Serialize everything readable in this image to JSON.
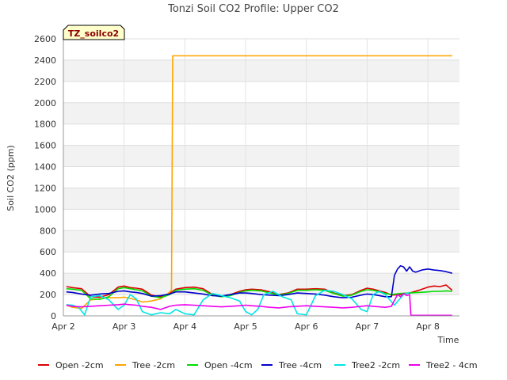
{
  "chart_data": {
    "type": "line",
    "title": "Tonzi Soil CO2 Profile: Upper CO2",
    "badge": "TZ_soilco2",
    "xlabel": "Time",
    "ylabel": "Soil CO2 (ppm)",
    "xlim": [
      2.0,
      8.52
    ],
    "ylim": [
      0,
      2600
    ],
    "yticks": [
      0,
      200,
      400,
      600,
      800,
      1000,
      1200,
      1400,
      1600,
      1800,
      2000,
      2200,
      2400,
      2600
    ],
    "xticks": [
      {
        "value": 2,
        "label": "Apr 2"
      },
      {
        "value": 3,
        "label": "Apr 3"
      },
      {
        "value": 4,
        "label": "Apr 4"
      },
      {
        "value": 5,
        "label": "Apr 5"
      },
      {
        "value": 6,
        "label": "Apr 6"
      },
      {
        "value": 7,
        "label": "Apr 7"
      },
      {
        "value": 8,
        "label": "Apr 8"
      }
    ],
    "grid": true,
    "legend_position": "bottom",
    "series": [
      {
        "name": "Open -2cm",
        "color": "#dd0000",
        "x": [
          2.05,
          2.15,
          2.3,
          2.45,
          2.6,
          2.75,
          2.9,
          3.0,
          3.1,
          3.2,
          3.3,
          3.45,
          3.6,
          3.75,
          3.85,
          4.0,
          4.15,
          4.3,
          4.45,
          4.6,
          4.75,
          4.9,
          5.0,
          5.1,
          5.25,
          5.4,
          5.55,
          5.7,
          5.85,
          6.0,
          6.15,
          6.3,
          6.45,
          6.6,
          6.75,
          6.9,
          7.0,
          7.1,
          7.2,
          7.3,
          7.4,
          7.55,
          7.7,
          7.85,
          8.0,
          8.1,
          8.2,
          8.3,
          8.4
        ],
        "y": [
          275,
          265,
          255,
          180,
          175,
          200,
          270,
          280,
          265,
          260,
          250,
          195,
          180,
          210,
          250,
          265,
          270,
          255,
          200,
          185,
          200,
          230,
          245,
          250,
          245,
          225,
          200,
          215,
          250,
          250,
          255,
          250,
          215,
          190,
          200,
          240,
          260,
          250,
          235,
          220,
          195,
          200,
          215,
          240,
          270,
          280,
          275,
          290,
          240
        ]
      },
      {
        "name": "Tree -2cm",
        "color": "#ffa500",
        "x": [
          2.05,
          2.15,
          2.3,
          2.45,
          2.6,
          2.75,
          2.9,
          3.0,
          3.1,
          3.2,
          3.3,
          3.45,
          3.6,
          3.7,
          3.78,
          3.8,
          4.0,
          5.0,
          6.0,
          7.0,
          8.0,
          8.4
        ],
        "y": [
          100,
          80,
          70,
          150,
          160,
          170,
          170,
          175,
          165,
          150,
          130,
          140,
          160,
          200,
          240,
          2440,
          2440,
          2440,
          2440,
          2440,
          2440,
          2440
        ]
      },
      {
        "name": "Open -4cm",
        "color": "#00dd00",
        "x": [
          2.05,
          2.15,
          2.3,
          2.45,
          2.6,
          2.75,
          2.9,
          3.0,
          3.1,
          3.2,
          3.3,
          3.45,
          3.6,
          3.75,
          3.85,
          4.0,
          4.15,
          4.3,
          4.45,
          4.6,
          4.75,
          4.9,
          5.0,
          5.1,
          5.25,
          5.4,
          5.55,
          5.7,
          5.85,
          6.0,
          6.15,
          6.3,
          6.45,
          6.6,
          6.75,
          6.9,
          7.0,
          7.1,
          7.2,
          7.3,
          7.4,
          7.55,
          7.7,
          7.85,
          8.0,
          8.1,
          8.2,
          8.3,
          8.4
        ],
        "y": [
          255,
          250,
          240,
          160,
          155,
          180,
          255,
          265,
          255,
          245,
          235,
          185,
          170,
          200,
          240,
          250,
          255,
          240,
          195,
          180,
          190,
          220,
          235,
          240,
          235,
          215,
          195,
          210,
          240,
          240,
          245,
          240,
          210,
          185,
          195,
          230,
          245,
          240,
          225,
          210,
          200,
          210,
          215,
          220,
          225,
          230,
          230,
          235,
          230
        ]
      },
      {
        "name": "Tree -4cm",
        "color": "#0000cc",
        "x": [
          2.05,
          2.15,
          2.3,
          2.45,
          2.6,
          2.75,
          2.9,
          3.0,
          3.1,
          3.2,
          3.3,
          3.45,
          3.6,
          3.75,
          3.85,
          4.0,
          4.15,
          4.3,
          4.45,
          4.6,
          4.75,
          4.9,
          5.0,
          5.1,
          5.25,
          5.4,
          5.55,
          5.7,
          5.85,
          6.0,
          6.15,
          6.3,
          6.45,
          6.6,
          6.75,
          6.9,
          7.0,
          7.1,
          7.2,
          7.3,
          7.4,
          7.45,
          7.5,
          7.55,
          7.6,
          7.65,
          7.7,
          7.75,
          7.8,
          7.9,
          8.0,
          8.1,
          8.2,
          8.3,
          8.4
        ],
        "y": [
          225,
          220,
          205,
          195,
          205,
          210,
          230,
          235,
          225,
          220,
          210,
          185,
          190,
          205,
          225,
          225,
          215,
          205,
          190,
          185,
          200,
          215,
          215,
          210,
          200,
          195,
          190,
          200,
          215,
          210,
          205,
          195,
          180,
          170,
          175,
          195,
          205,
          200,
          190,
          180,
          180,
          380,
          440,
          470,
          460,
          420,
          460,
          420,
          410,
          430,
          440,
          430,
          425,
          415,
          400
        ]
      },
      {
        "name": "Tree2 -2cm",
        "color": "#00e5e5",
        "x": [
          2.05,
          2.15,
          2.25,
          2.35,
          2.45,
          2.6,
          2.75,
          2.9,
          3.0,
          3.1,
          3.2,
          3.3,
          3.45,
          3.6,
          3.75,
          3.85,
          4.0,
          4.15,
          4.3,
          4.45,
          4.6,
          4.75,
          4.9,
          5.0,
          5.1,
          5.2,
          5.3,
          5.45,
          5.6,
          5.75,
          5.85,
          6.0,
          6.15,
          6.3,
          6.45,
          6.6,
          6.75,
          6.9,
          7.0,
          7.1,
          7.2,
          7.3,
          7.45,
          7.6,
          7.7
        ],
        "y": [
          105,
          100,
          80,
          10,
          180,
          190,
          150,
          60,
          100,
          200,
          160,
          40,
          10,
          30,
          20,
          60,
          20,
          10,
          150,
          210,
          190,
          170,
          140,
          40,
          10,
          60,
          200,
          230,
          180,
          150,
          20,
          10,
          190,
          240,
          230,
          200,
          160,
          60,
          40,
          200,
          230,
          200,
          100,
          200,
          220
        ]
      },
      {
        "name": "Tree2 - 4cm",
        "color": "#ee00ee",
        "x": [
          2.05,
          2.15,
          2.3,
          2.45,
          2.6,
          2.75,
          2.9,
          3.0,
          3.1,
          3.2,
          3.3,
          3.45,
          3.6,
          3.75,
          3.85,
          4.0,
          4.15,
          4.3,
          4.45,
          4.6,
          4.75,
          4.9,
          5.0,
          5.1,
          5.25,
          5.4,
          5.55,
          5.7,
          5.85,
          6.0,
          6.15,
          6.3,
          6.45,
          6.6,
          6.75,
          6.9,
          7.0,
          7.1,
          7.2,
          7.3,
          7.4,
          7.5,
          7.55,
          7.6,
          7.65,
          7.7,
          7.72,
          8.0,
          8.4
        ],
        "y": [
          100,
          90,
          85,
          90,
          95,
          100,
          105,
          110,
          105,
          100,
          90,
          80,
          60,
          90,
          100,
          105,
          100,
          95,
          90,
          85,
          90,
          95,
          100,
          95,
          90,
          80,
          75,
          85,
          90,
          95,
          90,
          85,
          80,
          75,
          80,
          90,
          95,
          90,
          85,
          80,
          90,
          200,
          180,
          210,
          190,
          200,
          5,
          5,
          5
        ]
      }
    ]
  }
}
